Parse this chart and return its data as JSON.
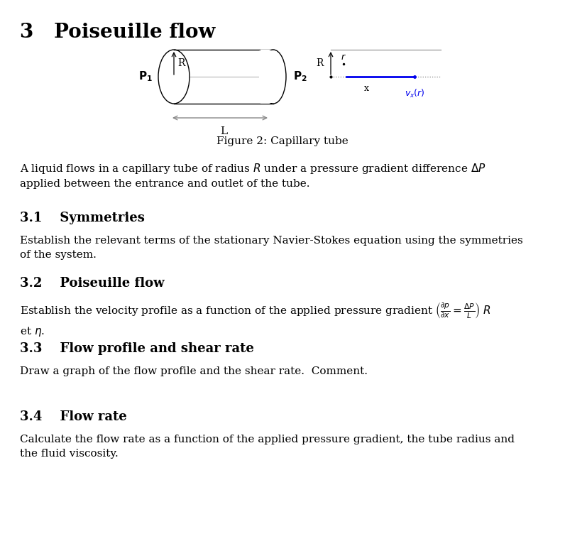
{
  "bg_color": "#ffffff",
  "text_color": "#000000",
  "blue_color": "#0000ee",
  "gray_color": "#888888",
  "title": "3   Poiseuille flow",
  "figure_caption": "Figure 2: Capillary tube",
  "intro_text": "A liquid flows in a capillary tube of radius $R$ under a pressure gradient difference $\\Delta P$\napplied between the entrance and outlet of the tube.",
  "s31_head": "3.1    Symmetries",
  "s31_body": "Establish the relevant terms of the stationary Navier-Stokes equation using the symmetries\nof the system.",
  "s32_head": "3.2    Poiseuille flow",
  "s33_head": "3.3    Flow profile and shear rate",
  "s33_body": "Draw a graph of the flow profile and the shear rate.  Comment.",
  "s34_head": "3.4    Flow rate",
  "s34_body": "Calculate the flow rate as a function of the applied pressure gradient, the tube radius and\nthe fluid viscosity."
}
